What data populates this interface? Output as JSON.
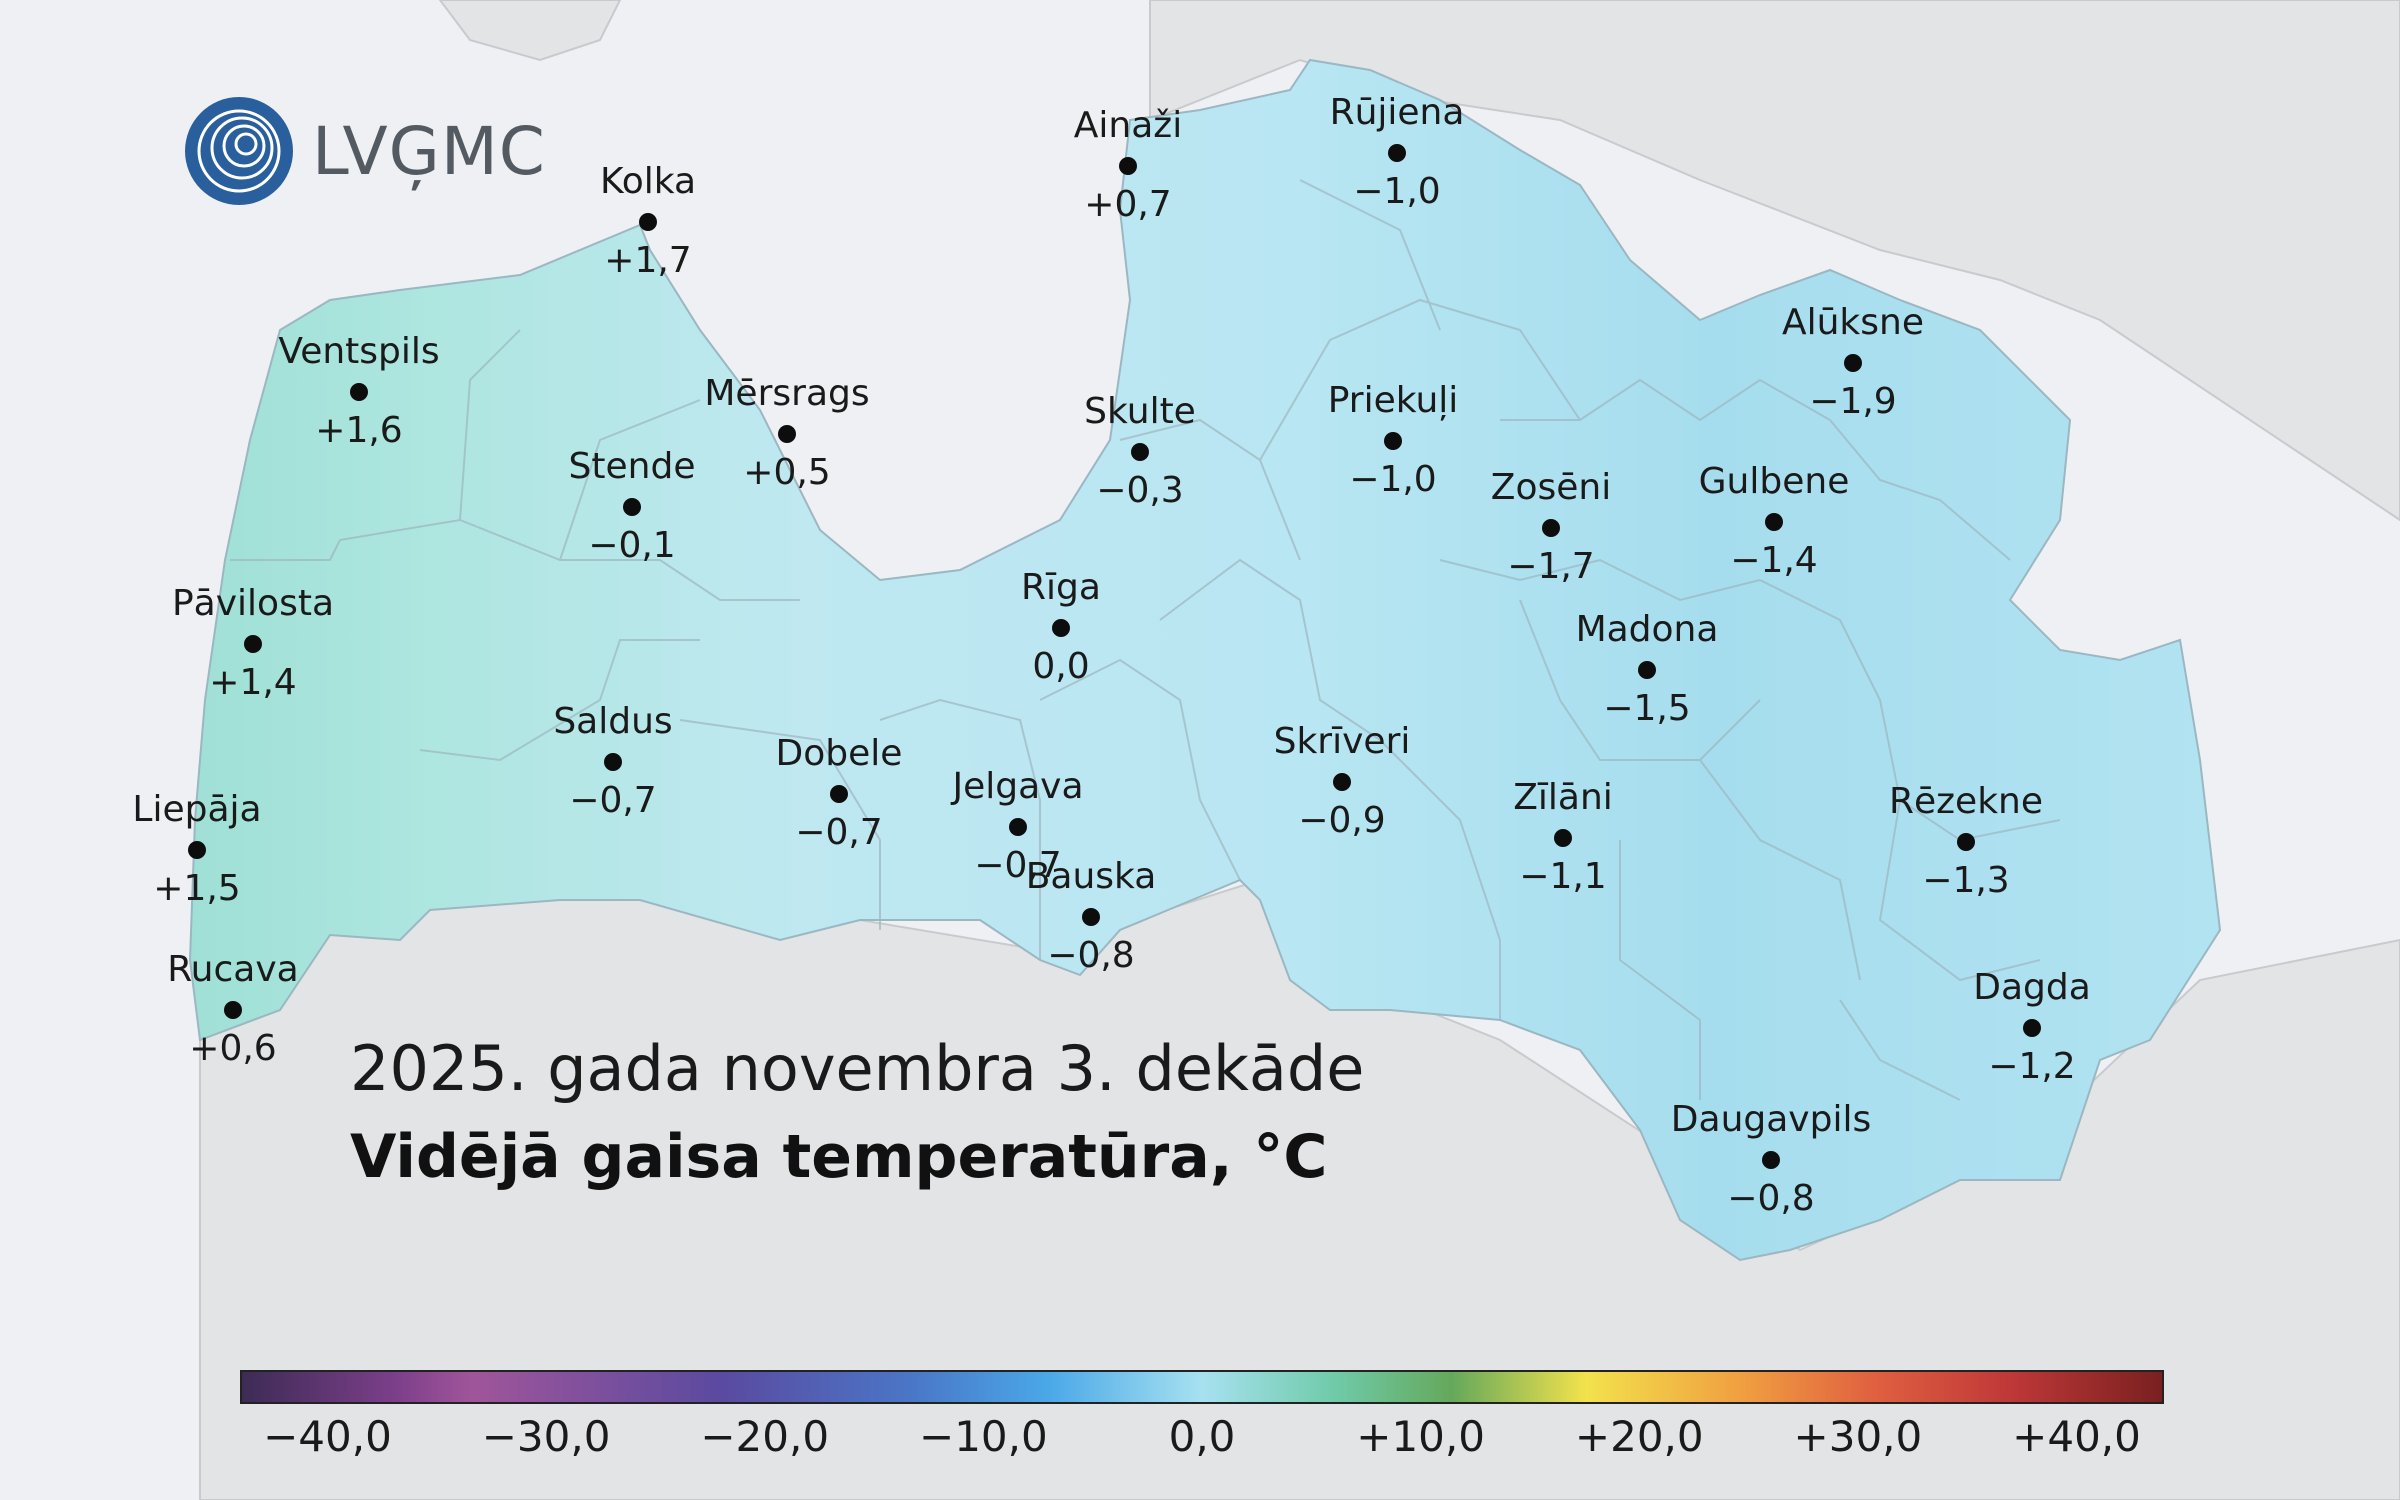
{
  "logo": {
    "text": "LVĢMC"
  },
  "title": {
    "line1": "2025. gada novembra 3. dekāde",
    "line2": "Vidējā gaisa temperatūra, °C"
  },
  "stations": [
    {
      "name": "Kolka",
      "value": "+1,7"
    },
    {
      "name": "Ainaži",
      "value": "+0,7"
    },
    {
      "name": "Rūjiena",
      "value": "−1,0"
    },
    {
      "name": "Ventspils",
      "value": "+1,6"
    },
    {
      "name": "Mērsrags",
      "value": "+0,5"
    },
    {
      "name": "Skulte",
      "value": "−0,3"
    },
    {
      "name": "Priekuļi",
      "value": "−1,0"
    },
    {
      "name": "Alūksne",
      "value": "−1,9"
    },
    {
      "name": "Stende",
      "value": "−0,1"
    },
    {
      "name": "Zosēni",
      "value": "−1,7"
    },
    {
      "name": "Gulbene",
      "value": "−1,4"
    },
    {
      "name": "Pāvilosta",
      "value": "+1,4"
    },
    {
      "name": "Rīga",
      "value": "0,0"
    },
    {
      "name": "Madona",
      "value": "−1,5"
    },
    {
      "name": "Saldus",
      "value": "−0,7"
    },
    {
      "name": "Dobele",
      "value": "−0,7"
    },
    {
      "name": "Jelgava",
      "value": "−0,7"
    },
    {
      "name": "Skrīveri",
      "value": "−0,9"
    },
    {
      "name": "Zīlāni",
      "value": "−1,1"
    },
    {
      "name": "Rēzekne",
      "value": "−1,3"
    },
    {
      "name": "Liepāja",
      "value": "+1,5"
    },
    {
      "name": "Bauska",
      "value": "−0,8"
    },
    {
      "name": "Rucava",
      "value": "+0,6"
    },
    {
      "name": "Dagda",
      "value": "−1,2"
    },
    {
      "name": "Daugavpils",
      "value": "−0,8"
    }
  ],
  "colorbar": {
    "ticks": [
      "−40,0",
      "−30,0",
      "−20,0",
      "−10,0",
      "0,0",
      "+10,0",
      "+20,0",
      "+30,0",
      "+40,0"
    ],
    "min": -44,
    "max": 44
  },
  "colors": {
    "sea": "#eef0f3",
    "land": "#e3e4e6",
    "country": "#c6e9f3",
    "coast_warm": "#a8e3dc",
    "east_cold": "#a9dff0"
  }
}
